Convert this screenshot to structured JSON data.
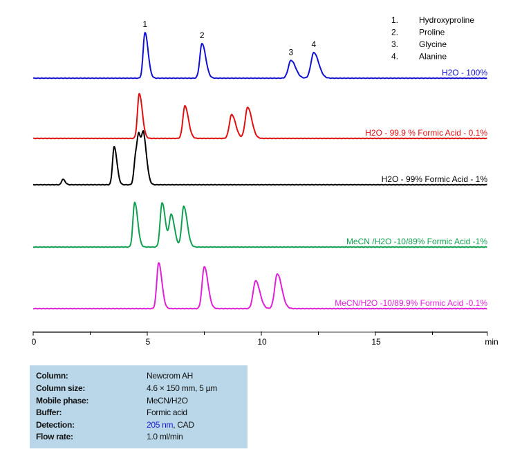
{
  "chart_data": {
    "type": "line",
    "xlabel": "min",
    "xlim": [
      0,
      19.9
    ],
    "x_ticks": [
      0,
      5,
      10,
      15
    ],
    "x_minor_ticks": [
      2.5,
      7.5,
      12.5,
      17.5
    ],
    "y_units": "relative response (not printed)",
    "grid": false,
    "peak_legend": {
      "placement": "top-right",
      "items": [
        {
          "num": "1.",
          "name": "Hydroxyproline"
        },
        {
          "num": "2.",
          "name": "Proline"
        },
        {
          "num": "3.",
          "name": "Glycine"
        },
        {
          "num": "4.",
          "name": "Alanine"
        }
      ]
    },
    "series": [
      {
        "name": "H2O -  100%",
        "color": "#1010d0",
        "peaks": [
          {
            "t": 4.9,
            "h": 100,
            "label": "1"
          },
          {
            "t": 7.4,
            "h": 76,
            "label": "2"
          },
          {
            "t": 11.3,
            "h": 39,
            "label": "3"
          },
          {
            "t": 12.3,
            "h": 56,
            "label": "4"
          }
        ]
      },
      {
        "name": "H2O -  99.9 % Formic Acid -  0.1%",
        "color": "#e01010",
        "peaks": [
          {
            "t": 4.65,
            "h": 98
          },
          {
            "t": 6.65,
            "h": 71
          },
          {
            "t": 8.7,
            "h": 52
          },
          {
            "t": 9.4,
            "h": 68
          }
        ]
      },
      {
        "name": "H2O -  99%  Formic Acid -  1%",
        "color": "#000000",
        "peaks": [
          {
            "t": 1.3,
            "h": 12
          },
          {
            "t": 3.55,
            "h": 83
          },
          {
            "t": 4.5,
            "h": 64
          },
          {
            "t": 4.65,
            "h": 76
          },
          {
            "t": 4.85,
            "h": 88
          }
        ]
      },
      {
        "name": "MeCN /H2O -10/89%   Formic Acid -1%",
        "color": "#10a050",
        "peaks": [
          {
            "t": 4.45,
            "h": 98
          },
          {
            "t": 5.65,
            "h": 97
          },
          {
            "t": 6.05,
            "h": 70
          },
          {
            "t": 6.6,
            "h": 89
          }
        ]
      },
      {
        "name": "MeCN/H2O -10/89.9%   Formic Acid -0.1%",
        "color": "#e020d8",
        "peaks": [
          {
            "t": 5.5,
            "h": 100
          },
          {
            "t": 7.5,
            "h": 92
          },
          {
            "t": 9.75,
            "h": 61
          },
          {
            "t": 10.7,
            "h": 76
          }
        ]
      }
    ]
  },
  "conditions": [
    {
      "label": "Column:",
      "value": "Newcrom AH"
    },
    {
      "label": "Column size:",
      "value": "4.6 × 150  mm, 5 µm"
    },
    {
      "label": "Mobile phase:",
      "value": "MeCN/H2O"
    },
    {
      "label": "Buffer:",
      "value": "Formic acid"
    },
    {
      "label": "Detection:",
      "value_highlight": "205 nm",
      "value": ", CAD",
      "highlight_color": "#1a1adb"
    },
    {
      "label": "Flow rate:",
      "value": "1.0 ml/min"
    }
  ]
}
